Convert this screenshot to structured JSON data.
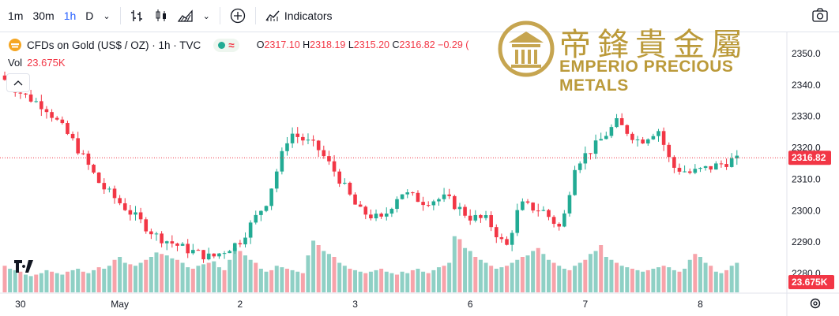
{
  "toolbar": {
    "intervals": [
      "1m",
      "30m",
      "1h",
      "D"
    ],
    "active_interval": "1h",
    "indicators_label": "Indicators"
  },
  "legend": {
    "symbol": "CFDs on Gold (US$ / OZ) · 1h · TVC",
    "open_label": "O",
    "open": "2317.10",
    "high_label": "H",
    "high": "2318.19",
    "low_label": "L",
    "low": "2315.20",
    "close_label": "C",
    "close": "2316.82",
    "change": "−0.29 (",
    "vol_label": "Vol",
    "vol_value": "23.675K"
  },
  "logo": {
    "chinese": "帝鋒貴金屬",
    "english": "EMPERIO PRECIOUS METALS"
  },
  "colors": {
    "up": "#22ab94",
    "down": "#f23645",
    "up_vol": "#8fd0c5",
    "down_vol": "#f7a3aa"
  },
  "chart_data": {
    "type": "candlestick",
    "y_ticks": [
      2280,
      2290,
      2300,
      2310,
      2320,
      2330,
      2340,
      2350
    ],
    "ylim": [
      2274,
      2357
    ],
    "last_price": "2316.82",
    "last_volume": "23.675K",
    "x_labels": [
      "30",
      "May",
      "2",
      "3",
      "6",
      "7",
      "8"
    ],
    "x_label_positions": [
      3,
      22,
      45,
      67,
      89,
      111,
      133
    ],
    "bars": 141,
    "volume_values": [
      18,
      16,
      15,
      14,
      12,
      11,
      12,
      13,
      15,
      14,
      13,
      12,
      14,
      15,
      16,
      14,
      13,
      15,
      17,
      16,
      18,
      22,
      24,
      20,
      19,
      18,
      20,
      22,
      24,
      27,
      26,
      25,
      23,
      22,
      20,
      17,
      16,
      18,
      19,
      20,
      21,
      17,
      15,
      22,
      30,
      28,
      25,
      22,
      20,
      16,
      14,
      15,
      18,
      17,
      16,
      15,
      14,
      13,
      25,
      35,
      32,
      28,
      26,
      24,
      20,
      18,
      16,
      15,
      14,
      13,
      14,
      15,
      16,
      14,
      13,
      12,
      14,
      13,
      15,
      16,
      14,
      13,
      15,
      17,
      18,
      20,
      38,
      36,
      30,
      28,
      24,
      22,
      20,
      18,
      16,
      17,
      18,
      20,
      22,
      24,
      25,
      28,
      30,
      26,
      22,
      20,
      18,
      16,
      15,
      18,
      20,
      22,
      26,
      28,
      32,
      24,
      22,
      20,
      18,
      17,
      16,
      15,
      14,
      15,
      16,
      17,
      18,
      17,
      15,
      14,
      16,
      22,
      26,
      24,
      20,
      18,
      14,
      13,
      15,
      18,
      20
    ]
  }
}
